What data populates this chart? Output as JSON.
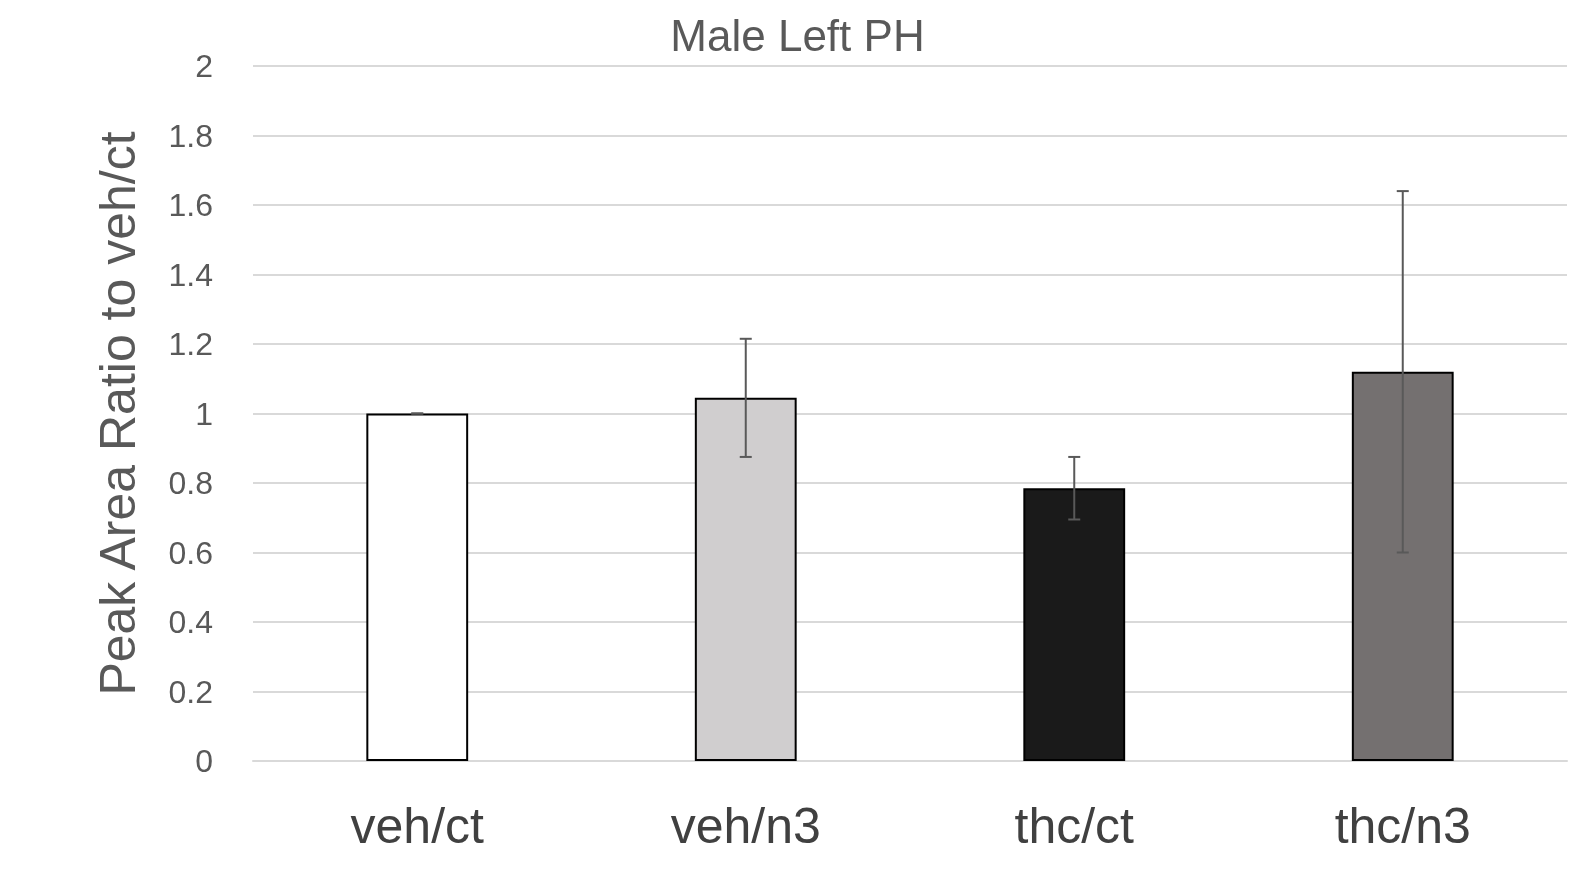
{
  "chart_data": {
    "type": "bar",
    "title": "Male Left PH",
    "ylabel": "Peak Area Ratio to veh/ct",
    "categories": [
      "veh/ct",
      "veh/n3",
      "thc/ct",
      "thc/n3"
    ],
    "values": [
      1.0,
      1.045,
      0.785,
      1.12
    ],
    "colors": [
      "#ffffff",
      "#d0cecf",
      "#1a1a1a",
      "#747070"
    ],
    "errors": [
      0,
      0.17,
      0.09,
      0.52
    ],
    "ylim": [
      0,
      2
    ],
    "yticks": [
      0,
      0.2,
      0.4,
      0.6,
      0.8,
      1,
      1.2,
      1.4,
      1.6,
      1.8,
      2
    ],
    "grid": "y"
  }
}
